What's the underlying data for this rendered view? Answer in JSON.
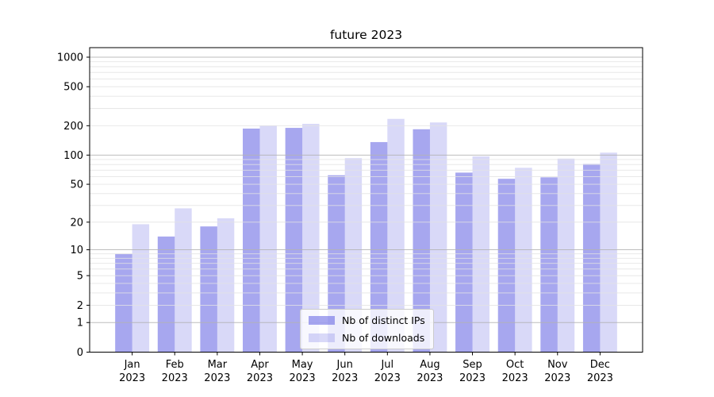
{
  "chart_data": {
    "type": "bar",
    "title": "future 2023",
    "categories": [
      "Jan",
      "Feb",
      "Mar",
      "Apr",
      "May",
      "Jun",
      "Jul",
      "Aug",
      "Sep",
      "Oct",
      "Nov",
      "Dec"
    ],
    "category_year": "2023",
    "series": [
      {
        "name": "Nb of distinct IPs",
        "values": [
          9,
          14,
          18,
          187,
          190,
          62,
          136,
          184,
          66,
          57,
          59,
          81
        ],
        "color": "#5050e0",
        "fill_opacity": 0.5
      },
      {
        "name": "Nb of downloads",
        "values": [
          19,
          28,
          22,
          200,
          209,
          93,
          235,
          216,
          97,
          74,
          92,
          106
        ],
        "color": "#5050e0",
        "fill_opacity": 0.22
      }
    ],
    "yscale": "log1p",
    "ylim": [
      0,
      1250
    ],
    "ytick_labels": [
      0,
      1,
      2,
      5,
      10,
      20,
      50,
      100,
      200,
      500,
      1000
    ],
    "major_grid_at": [
      1,
      10,
      100,
      1000
    ],
    "grid": true,
    "legend_position": "lower center",
    "colors": {
      "grid_major": "#b3b3b3",
      "grid_minor": "#e2e2e2",
      "axis": "#000000",
      "text": "#000000",
      "legend_border": "#cccccc",
      "legend_bg": "rgba(255,255,255,0.8)"
    }
  }
}
